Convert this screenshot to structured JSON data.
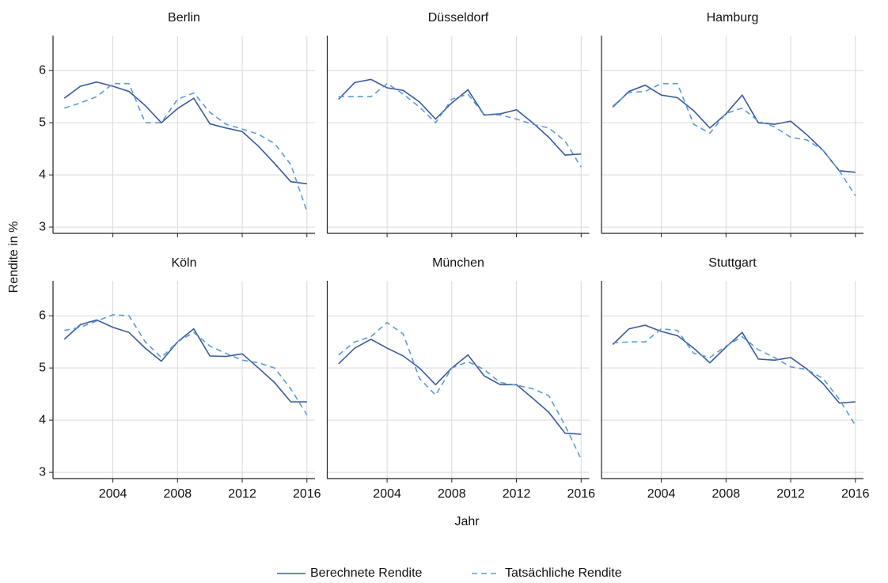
{
  "shared": {
    "x_label": "Jahr",
    "y_label": "Rendite in %"
  },
  "chart_data": [
    {
      "type": "line",
      "title": "Berlin",
      "x": [
        2001,
        2002,
        2003,
        2004,
        2005,
        2006,
        2007,
        2008,
        2009,
        2010,
        2011,
        2012,
        2013,
        2014,
        2015,
        2016
      ],
      "series": [
        {
          "name": "Berechnete Rendite",
          "color": "#3b5a9d",
          "line_style": "solid",
          "values": [
            5.47,
            5.7,
            5.78,
            5.7,
            5.6,
            5.33,
            5.0,
            5.27,
            5.47,
            4.98,
            4.9,
            4.83,
            4.55,
            4.22,
            3.87,
            3.83
          ]
        },
        {
          "name": "Tatsächliche Rendite",
          "color": "#5b9bd5",
          "line_style": "dashed",
          "values": [
            5.28,
            5.38,
            5.5,
            5.75,
            5.75,
            5.0,
            5.0,
            5.45,
            5.57,
            5.2,
            4.97,
            4.88,
            4.78,
            4.6,
            4.2,
            3.3
          ]
        }
      ],
      "xlim": [
        2000.3,
        2016.5
      ],
      "xticks": [
        2004,
        2008,
        2012,
        2016
      ],
      "ylim": [
        2.88,
        6.67
      ],
      "yticks": [
        3,
        4,
        5,
        6
      ],
      "grid": true
    },
    {
      "type": "line",
      "title": "Düsseldorf",
      "x": [
        2001,
        2002,
        2003,
        2004,
        2005,
        2006,
        2007,
        2008,
        2009,
        2010,
        2011,
        2012,
        2013,
        2014,
        2015,
        2016
      ],
      "series": [
        {
          "name": "Berechnete Rendite",
          "color": "#3b5a9d",
          "line_style": "solid",
          "values": [
            5.45,
            5.77,
            5.83,
            5.67,
            5.62,
            5.4,
            5.07,
            5.38,
            5.63,
            5.15,
            5.17,
            5.25,
            5.0,
            4.72,
            4.38,
            4.4
          ]
        },
        {
          "name": "Tatsächliche Rendite",
          "color": "#5b9bd5",
          "line_style": "dashed",
          "values": [
            5.5,
            5.5,
            5.5,
            5.75,
            5.55,
            5.3,
            5.0,
            5.45,
            5.55,
            5.15,
            5.15,
            5.07,
            4.97,
            4.9,
            4.65,
            4.15
          ]
        }
      ],
      "xlim": [
        2000.3,
        2016.5
      ],
      "xticks": [
        2004,
        2008,
        2012,
        2016
      ],
      "ylim": [
        2.88,
        6.67
      ],
      "yticks": [
        3,
        4,
        5,
        6
      ],
      "grid": true
    },
    {
      "type": "line",
      "title": "Hamburg",
      "x": [
        2001,
        2002,
        2003,
        2004,
        2005,
        2006,
        2007,
        2008,
        2009,
        2010,
        2011,
        2012,
        2013,
        2014,
        2015,
        2016
      ],
      "series": [
        {
          "name": "Berechnete Rendite",
          "color": "#3b5a9d",
          "line_style": "solid",
          "values": [
            5.3,
            5.6,
            5.72,
            5.53,
            5.48,
            5.23,
            4.9,
            5.17,
            5.53,
            5.0,
            4.97,
            5.03,
            4.77,
            4.47,
            4.08,
            4.05
          ]
        },
        {
          "name": "Tatsächliche Rendite",
          "color": "#5b9bd5",
          "line_style": "dashed",
          "values": [
            5.32,
            5.58,
            5.6,
            5.75,
            5.75,
            4.97,
            4.8,
            5.18,
            5.28,
            5.03,
            4.92,
            4.72,
            4.67,
            4.47,
            4.08,
            3.6
          ]
        }
      ],
      "xlim": [
        2000.3,
        2016.5
      ],
      "xticks": [
        2004,
        2008,
        2012,
        2016
      ],
      "ylim": [
        2.88,
        6.67
      ],
      "yticks": [
        3,
        4,
        5,
        6
      ],
      "grid": true
    },
    {
      "type": "line",
      "title": "Köln",
      "x": [
        2001,
        2002,
        2003,
        2004,
        2005,
        2006,
        2007,
        2008,
        2009,
        2010,
        2011,
        2012,
        2013,
        2014,
        2015,
        2016
      ],
      "series": [
        {
          "name": "Berechnete Rendite",
          "color": "#3b5a9d",
          "line_style": "solid",
          "values": [
            5.55,
            5.83,
            5.92,
            5.78,
            5.68,
            5.38,
            5.13,
            5.5,
            5.75,
            5.23,
            5.22,
            5.27,
            5.0,
            4.72,
            4.35,
            4.35
          ]
        },
        {
          "name": "Tatsächliche Rendite",
          "color": "#5b9bd5",
          "line_style": "dashed",
          "values": [
            5.72,
            5.78,
            5.9,
            6.02,
            6.0,
            5.5,
            5.2,
            5.5,
            5.68,
            5.42,
            5.28,
            5.15,
            5.1,
            5.0,
            4.6,
            4.1
          ]
        }
      ],
      "xlim": [
        2000.3,
        2016.5
      ],
      "xticks": [
        2004,
        2008,
        2012,
        2016
      ],
      "ylim": [
        2.88,
        6.67
      ],
      "yticks": [
        3,
        4,
        5,
        6
      ],
      "grid": true
    },
    {
      "type": "line",
      "title": "München",
      "x": [
        2001,
        2002,
        2003,
        2004,
        2005,
        2006,
        2007,
        2008,
        2009,
        2010,
        2011,
        2012,
        2013,
        2014,
        2015,
        2016
      ],
      "series": [
        {
          "name": "Berechnete Rendite",
          "color": "#3b5a9d",
          "line_style": "solid",
          "values": [
            5.08,
            5.38,
            5.55,
            5.38,
            5.23,
            5.0,
            4.68,
            5.0,
            5.25,
            4.85,
            4.68,
            4.68,
            4.42,
            4.15,
            3.75,
            3.73
          ]
        },
        {
          "name": "Tatsächliche Rendite",
          "color": "#5b9bd5",
          "line_style": "dashed",
          "values": [
            5.25,
            5.5,
            5.6,
            5.87,
            5.65,
            4.8,
            4.48,
            5.0,
            5.12,
            4.97,
            4.72,
            4.67,
            4.6,
            4.47,
            3.9,
            3.25
          ]
        }
      ],
      "xlim": [
        2000.3,
        2016.5
      ],
      "xticks": [
        2004,
        2008,
        2012,
        2016
      ],
      "ylim": [
        2.88,
        6.67
      ],
      "yticks": [
        3,
        4,
        5,
        6
      ],
      "grid": true
    },
    {
      "type": "line",
      "title": "Stuttgart",
      "x": [
        2001,
        2002,
        2003,
        2004,
        2005,
        2006,
        2007,
        2008,
        2009,
        2010,
        2011,
        2012,
        2013,
        2014,
        2015,
        2016
      ],
      "series": [
        {
          "name": "Berechnete Rendite",
          "color": "#3b5a9d",
          "line_style": "solid",
          "values": [
            5.45,
            5.75,
            5.82,
            5.7,
            5.62,
            5.38,
            5.1,
            5.4,
            5.68,
            5.17,
            5.15,
            5.2,
            4.98,
            4.7,
            4.33,
            4.35
          ]
        },
        {
          "name": "Tatsächliche Rendite",
          "color": "#5b9bd5",
          "line_style": "dashed",
          "values": [
            5.48,
            5.5,
            5.5,
            5.75,
            5.72,
            5.28,
            5.2,
            5.42,
            5.6,
            5.35,
            5.2,
            5.02,
            4.97,
            4.8,
            4.4,
            3.9
          ]
        }
      ],
      "xlim": [
        2000.3,
        2016.5
      ],
      "xticks": [
        2004,
        2008,
        2012,
        2016
      ],
      "ylim": [
        2.88,
        6.67
      ],
      "yticks": [
        3,
        4,
        5,
        6
      ],
      "grid": true
    }
  ]
}
